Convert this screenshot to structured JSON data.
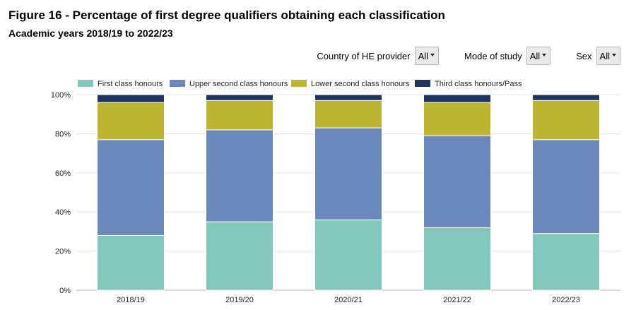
{
  "header": {
    "title": "Figure 16 - Percentage of first degree qualifiers obtaining each classification",
    "subtitle": "Academic years 2018/19 to 2022/23"
  },
  "filters": [
    {
      "label": "Country of HE provider",
      "value": "All"
    },
    {
      "label": "Mode of study",
      "value": "All"
    },
    {
      "label": "Sex",
      "value": "All"
    }
  ],
  "chart_data": {
    "type": "bar",
    "stacked": true,
    "categories": [
      "2018/19",
      "2019/20",
      "2020/21",
      "2021/22",
      "2022/23"
    ],
    "series": [
      {
        "name": "First class honours",
        "color": "#82c6bc",
        "values": [
          28,
          35,
          36,
          32,
          29
        ]
      },
      {
        "name": "Upper second class honours",
        "color": "#6b88bd",
        "values": [
          49,
          47,
          47,
          47,
          48
        ]
      },
      {
        "name": "Lower second class honours",
        "color": "#bcb532",
        "values": [
          19,
          15,
          14,
          17,
          20
        ]
      },
      {
        "name": "Third class honours/Pass",
        "color": "#1f3461",
        "values": [
          4,
          3,
          3,
          4,
          3
        ]
      }
    ],
    "ylim": [
      0,
      100
    ],
    "yticks": [
      0,
      20,
      40,
      60,
      80,
      100
    ],
    "ytick_labels": [
      "0%",
      "20%",
      "40%",
      "60%",
      "80%",
      "100%"
    ],
    "grid": true,
    "legend": "top"
  }
}
